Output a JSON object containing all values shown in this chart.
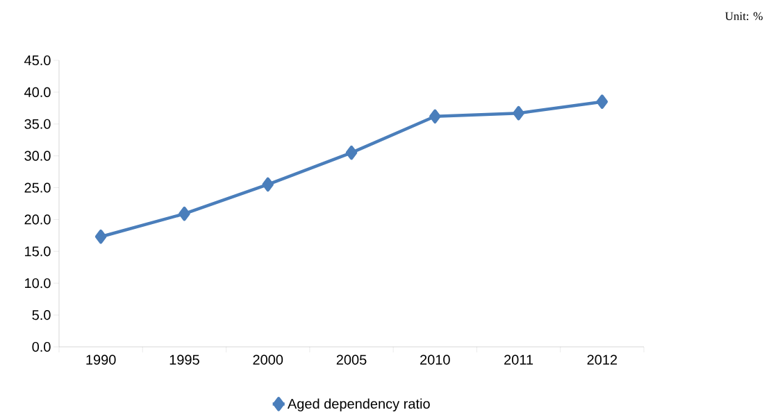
{
  "chart_data": {
    "type": "line",
    "categories": [
      "1990",
      "1995",
      "2000",
      "2005",
      "2010",
      "2011",
      "2012"
    ],
    "series": [
      {
        "name": "Aged dependency ratio",
        "color": "#4a7ebb",
        "values": [
          17.3,
          20.9,
          25.5,
          30.5,
          36.2,
          36.7,
          38.5
        ]
      }
    ],
    "ylim": [
      0,
      45
    ],
    "yticks": [
      {
        "value": 0,
        "label": "0.0"
      },
      {
        "value": 5,
        "label": "5.0"
      },
      {
        "value": 10,
        "label": "10.0"
      },
      {
        "value": 15,
        "label": "15.0"
      },
      {
        "value": 20,
        "label": "20.0"
      },
      {
        "value": 25,
        "label": "25.0"
      },
      {
        "value": 30,
        "label": "30.0"
      },
      {
        "value": 35,
        "label": "35.0"
      },
      {
        "value": 40,
        "label": "40.0"
      },
      {
        "value": 45,
        "label": "45.0"
      }
    ],
    "annotations": [
      "Unit: %"
    ],
    "legend": "bottom",
    "grid": false,
    "marker": "diamond",
    "line_style": "solid"
  }
}
